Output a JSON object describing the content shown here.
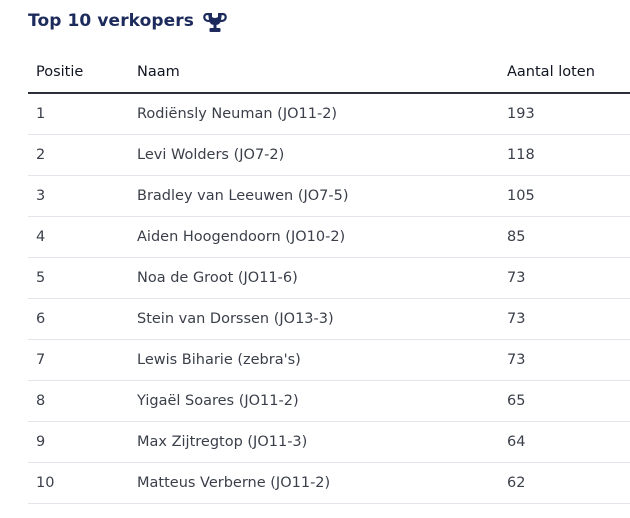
{
  "header": {
    "title": "Top 10 verkopers",
    "icon": "trophy-icon",
    "accent_color": "#1c2a5c"
  },
  "table": {
    "columns": [
      "Positie",
      "Naam",
      "Aantal loten"
    ],
    "rows": [
      {
        "positie": "1",
        "naam": "Rodiënsly Neuman (JO11-2)",
        "aantal": "193"
      },
      {
        "positie": "2",
        "naam": "Levi Wolders (JO7-2)",
        "aantal": "118"
      },
      {
        "positie": "3",
        "naam": "Bradley van Leeuwen (JO7-5)",
        "aantal": "105"
      },
      {
        "positie": "4",
        "naam": "Aiden Hoogendoorn (JO10-2)",
        "aantal": "85"
      },
      {
        "positie": "5",
        "naam": "Noa de Groot (JO11-6)",
        "aantal": "73"
      },
      {
        "positie": "6",
        "naam": "Stein van Dorssen (JO13-3)",
        "aantal": "73"
      },
      {
        "positie": "7",
        "naam": "Lewis Biharie (zebra's)",
        "aantal": "73"
      },
      {
        "positie": "8",
        "naam": "Yigaël Soares (JO11-2)",
        "aantal": "65"
      },
      {
        "positie": "9",
        "naam": "Max Zijtregtop (JO11-3)",
        "aantal": "64"
      },
      {
        "positie": "10",
        "naam": "Matteus Verberne (JO11-2)",
        "aantal": "62"
      }
    ]
  }
}
